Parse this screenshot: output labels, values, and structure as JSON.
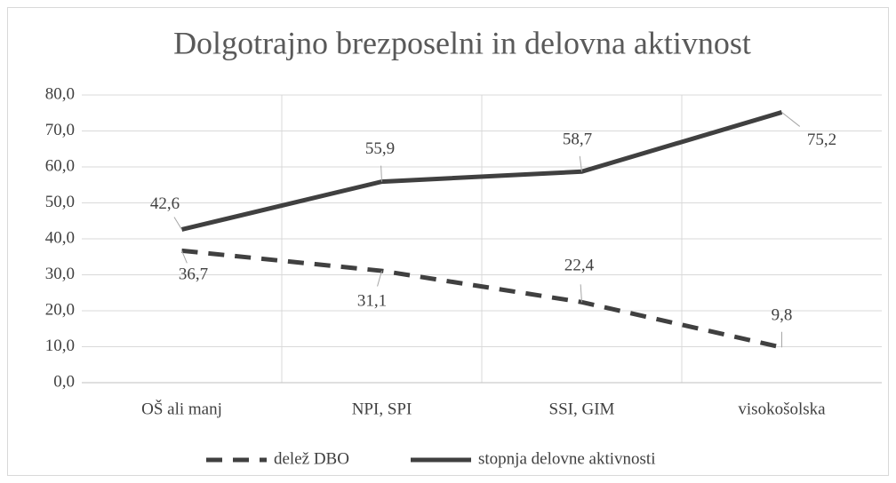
{
  "chart_data": {
    "type": "line",
    "title": "Dolgotrajno brezposelni in delovna aktivnost",
    "categories": [
      "OŠ ali manj",
      "NPI, SPI",
      "SSI, GIM",
      "visokošolska"
    ],
    "series": [
      {
        "name": "delež DBO",
        "color": "#404040",
        "style": "dashed",
        "values": [
          36.7,
          31.1,
          22.4,
          9.8
        ],
        "value_labels": [
          "36,7",
          "31,1",
          "22,4",
          "9,8"
        ]
      },
      {
        "name": "stopnja delovne aktivnosti",
        "color": "#404040",
        "style": "solid",
        "values": [
          42.6,
          55.9,
          58.7,
          75.2
        ],
        "value_labels": [
          "42,6",
          "55,9",
          "58,7",
          "75,2"
        ]
      }
    ],
    "ylim": [
      0,
      80
    ],
    "yticks": [
      {
        "value": 0,
        "label": "0,0"
      },
      {
        "value": 10,
        "label": "10,0"
      },
      {
        "value": 20,
        "label": "20,0"
      },
      {
        "value": 30,
        "label": "30,0"
      },
      {
        "value": 40,
        "label": "40,0"
      },
      {
        "value": 50,
        "label": "50,0"
      },
      {
        "value": 60,
        "label": "60,0"
      },
      {
        "value": 70,
        "label": "70,0"
      },
      {
        "value": 80,
        "label": "80,0"
      }
    ],
    "grid": true,
    "legend": "bottom"
  }
}
